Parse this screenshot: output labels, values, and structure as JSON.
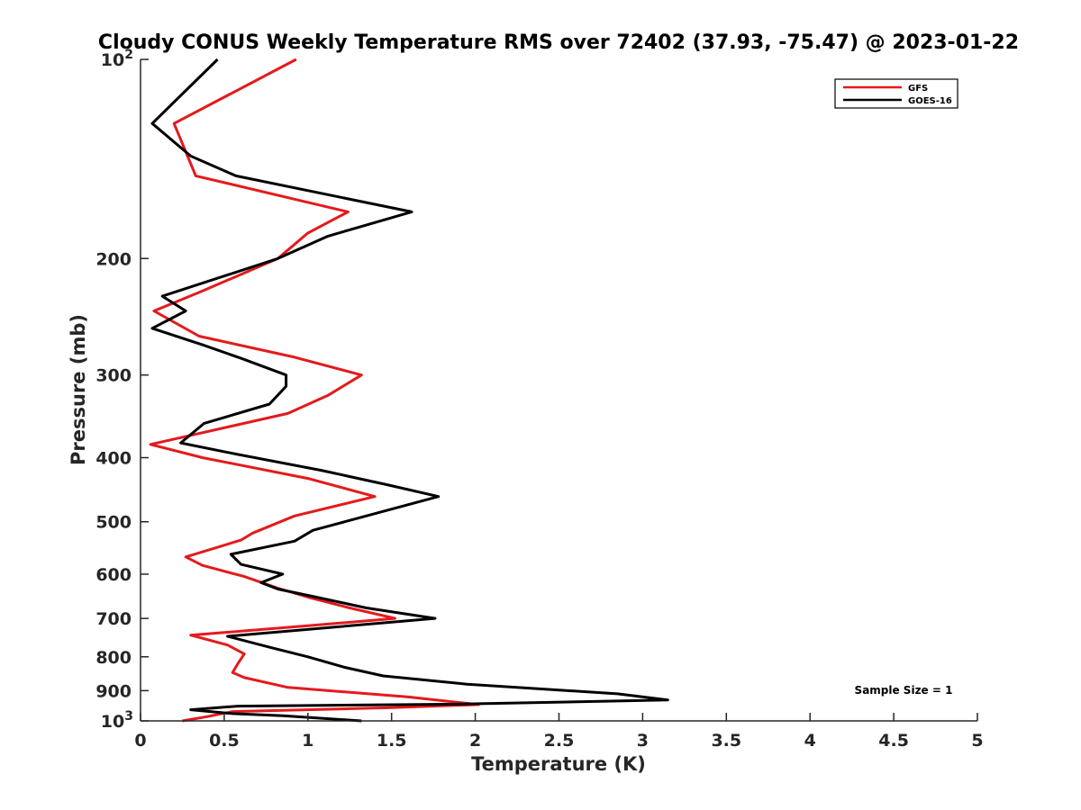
{
  "chart_data": {
    "type": "line",
    "title": "Cloudy CONUS Weekly Temperature RMS over 72402 (37.93, -75.47) @ 2023-01-22",
    "xlabel": "Temperature (K)",
    "ylabel": "Pressure (mb)",
    "xlim": [
      0,
      5
    ],
    "ylim": [
      1000,
      100
    ],
    "yscale": "log",
    "y_reversed": true,
    "grid": false,
    "legend_position": "top-right",
    "x_ticks": [
      "0",
      "0.5",
      "1",
      "1.5",
      "2",
      "2.5",
      "3",
      "3.5",
      "4",
      "4.5",
      "5"
    ],
    "x_tick_values": [
      0,
      0.5,
      1,
      1.5,
      2,
      2.5,
      3,
      3.5,
      4,
      4.5,
      5
    ],
    "y_ticks": [
      {
        "value": 100,
        "base": "10",
        "exp": "2"
      },
      {
        "value": 200,
        "base": "200",
        "exp": ""
      },
      {
        "value": 300,
        "base": "300",
        "exp": ""
      },
      {
        "value": 400,
        "base": "400",
        "exp": ""
      },
      {
        "value": 500,
        "base": "500",
        "exp": ""
      },
      {
        "value": 600,
        "base": "600",
        "exp": ""
      },
      {
        "value": 700,
        "base": "700",
        "exp": ""
      },
      {
        "value": 800,
        "base": "800",
        "exp": ""
      },
      {
        "value": 900,
        "base": "900",
        "exp": ""
      },
      {
        "value": 1000,
        "base": "10",
        "exp": "3"
      }
    ],
    "annotation": "Sample Size = 1",
    "series": [
      {
        "name": "GFS",
        "color": "#e41a1c",
        "points": [
          [
            0.93,
            100
          ],
          [
            0.2,
            125
          ],
          [
            0.33,
            150
          ],
          [
            1.24,
            170
          ],
          [
            1.0,
            183
          ],
          [
            0.82,
            200
          ],
          [
            0.35,
            225
          ],
          [
            0.08,
            240
          ],
          [
            0.35,
            262
          ],
          [
            0.92,
            282
          ],
          [
            1.32,
            300
          ],
          [
            1.12,
            322
          ],
          [
            0.88,
            343
          ],
          [
            0.06,
            382
          ],
          [
            0.37,
            400
          ],
          [
            1.0,
            430
          ],
          [
            1.4,
            458
          ],
          [
            0.92,
            490
          ],
          [
            0.67,
            520
          ],
          [
            0.6,
            533
          ],
          [
            0.27,
            565
          ],
          [
            0.37,
            582
          ],
          [
            0.62,
            605
          ],
          [
            0.82,
            630
          ],
          [
            1.0,
            650
          ],
          [
            1.25,
            675
          ],
          [
            1.52,
            700
          ],
          [
            1.0,
            718
          ],
          [
            0.3,
            742
          ],
          [
            0.52,
            768
          ],
          [
            0.62,
            792
          ],
          [
            0.58,
            820
          ],
          [
            0.55,
            845
          ],
          [
            0.62,
            860
          ],
          [
            0.88,
            890
          ],
          [
            1.6,
            920
          ],
          [
            2.02,
            945
          ],
          [
            1.5,
            955
          ],
          [
            0.55,
            968
          ],
          [
            0.4,
            985
          ],
          [
            0.25,
            1000
          ]
        ]
      },
      {
        "name": "GOES-16",
        "color": "#000000",
        "points": [
          [
            0.46,
            100
          ],
          [
            0.07,
            125
          ],
          [
            0.3,
            140
          ],
          [
            0.57,
            150
          ],
          [
            1.62,
            170
          ],
          [
            1.12,
            185
          ],
          [
            0.82,
            200
          ],
          [
            0.13,
            228
          ],
          [
            0.27,
            240
          ],
          [
            0.07,
            255
          ],
          [
            0.37,
            270
          ],
          [
            0.6,
            283
          ],
          [
            0.87,
            300
          ],
          [
            0.87,
            312
          ],
          [
            0.77,
            332
          ],
          [
            0.38,
            355
          ],
          [
            0.24,
            380
          ],
          [
            0.57,
            395
          ],
          [
            1.08,
            418
          ],
          [
            1.48,
            440
          ],
          [
            1.78,
            458
          ],
          [
            1.22,
            500
          ],
          [
            1.03,
            515
          ],
          [
            0.92,
            535
          ],
          [
            0.54,
            560
          ],
          [
            0.6,
            580
          ],
          [
            0.85,
            600
          ],
          [
            0.72,
            618
          ],
          [
            0.82,
            632
          ],
          [
            1.05,
            650
          ],
          [
            1.35,
            675
          ],
          [
            1.76,
            700
          ],
          [
            0.52,
            745
          ],
          [
            0.78,
            775
          ],
          [
            1.0,
            800
          ],
          [
            1.22,
            830
          ],
          [
            1.45,
            855
          ],
          [
            1.95,
            880
          ],
          [
            2.85,
            910
          ],
          [
            3.15,
            930
          ],
          [
            1.92,
            943
          ],
          [
            0.58,
            950
          ],
          [
            0.3,
            962
          ],
          [
            0.55,
            975
          ],
          [
            0.85,
            982
          ],
          [
            1.32,
            1000
          ]
        ]
      }
    ]
  }
}
